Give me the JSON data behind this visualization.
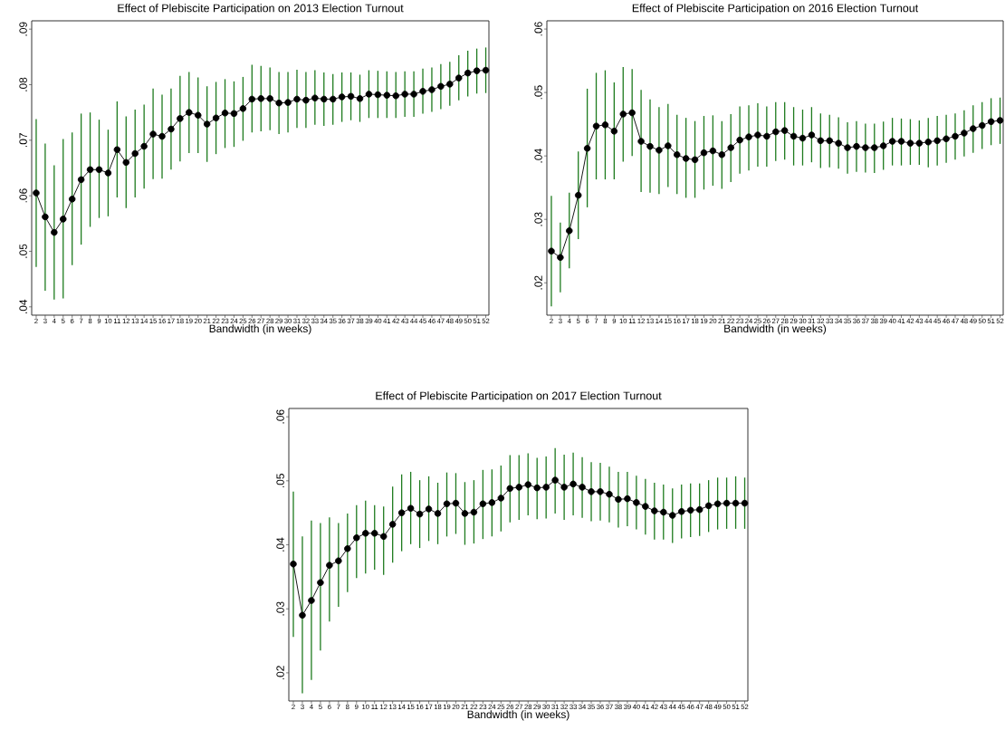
{
  "chart_data": [
    {
      "type": "line",
      "title": "Effect of Plebiscite Participation on 2013 Election Turnout",
      "xlabel": "Bandwidth (in weeks)",
      "marker": "circle",
      "x": [
        2,
        3,
        4,
        5,
        6,
        7,
        8,
        9,
        10,
        11,
        12,
        13,
        14,
        15,
        16,
        17,
        18,
        19,
        20,
        21,
        22,
        23,
        24,
        25,
        26,
        27,
        28,
        29,
        30,
        31,
        32,
        33,
        34,
        35,
        36,
        37,
        38,
        39,
        40,
        41,
        42,
        43,
        44,
        45,
        46,
        47,
        48,
        49,
        50,
        51,
        52
      ],
      "xlim": [
        1.5,
        52.35
      ],
      "ylim": [
        0.0385,
        0.0915
      ],
      "xticks": [
        2,
        3,
        4,
        5,
        6,
        7,
        8,
        9,
        10,
        11,
        12,
        13,
        14,
        15,
        16,
        17,
        18,
        19,
        20,
        21,
        22,
        23,
        24,
        25,
        26,
        27,
        28,
        29,
        30,
        31,
        32,
        33,
        34,
        35,
        36,
        37,
        38,
        39,
        40,
        41,
        42,
        43,
        44,
        45,
        46,
        47,
        48,
        49,
        50,
        51,
        52
      ],
      "yticks": [
        {
          "value": 0.04,
          "label": ".04"
        },
        {
          "value": 0.05,
          "label": ".05"
        },
        {
          "value": 0.06,
          "label": ".06"
        },
        {
          "value": 0.07,
          "label": ".07"
        },
        {
          "value": 0.08,
          "label": ".08"
        },
        {
          "value": 0.09,
          "label": ".09"
        }
      ],
      "series": [
        {
          "color": "#000000",
          "values": [
            0.0605,
            0.0562,
            0.0534,
            0.0558,
            0.0594,
            0.0629,
            0.0647,
            0.0647,
            0.0641,
            0.0683,
            0.066,
            0.0676,
            0.0689,
            0.0711,
            0.0707,
            0.072,
            0.0739,
            0.075,
            0.0745,
            0.0729,
            0.074,
            0.0749,
            0.0748,
            0.0757,
            0.0774,
            0.0775,
            0.0775,
            0.0767,
            0.0768,
            0.0774,
            0.0772,
            0.0776,
            0.0774,
            0.0774,
            0.0778,
            0.0779,
            0.0775,
            0.0783,
            0.0782,
            0.0781,
            0.078,
            0.0783,
            0.0783,
            0.0788,
            0.0791,
            0.0797,
            0.0801,
            0.0812,
            0.0821,
            0.0825,
            0.0826
          ],
          "errors": [
            [
              0.0472,
              0.0738
            ],
            [
              0.0429,
              0.0694
            ],
            [
              0.0413,
              0.0655
            ],
            [
              0.0415,
              0.0702
            ],
            [
              0.0475,
              0.0714
            ],
            [
              0.0512,
              0.0748
            ],
            [
              0.0544,
              0.075
            ],
            [
              0.056,
              0.0737
            ],
            [
              0.0563,
              0.0719
            ],
            [
              0.0597,
              0.077
            ],
            [
              0.0578,
              0.0743
            ],
            [
              0.0597,
              0.0755
            ],
            [
              0.0613,
              0.0764
            ],
            [
              0.063,
              0.0793
            ],
            [
              0.0631,
              0.0782
            ],
            [
              0.0647,
              0.0793
            ],
            [
              0.0662,
              0.0816
            ],
            [
              0.0677,
              0.0823
            ],
            [
              0.0677,
              0.0813
            ],
            [
              0.0661,
              0.0797
            ],
            [
              0.0675,
              0.0805
            ],
            [
              0.0686,
              0.081
            ],
            [
              0.0688,
              0.0806
            ],
            [
              0.0699,
              0.0814
            ],
            [
              0.0714,
              0.0836
            ],
            [
              0.0716,
              0.0834
            ],
            [
              0.0718,
              0.0831
            ],
            [
              0.0711,
              0.0823
            ],
            [
              0.0714,
              0.0823
            ],
            [
              0.0722,
              0.0827
            ],
            [
              0.0722,
              0.0823
            ],
            [
              0.0728,
              0.0826
            ],
            [
              0.0726,
              0.0822
            ],
            [
              0.0728,
              0.0819
            ],
            [
              0.0733,
              0.0822
            ],
            [
              0.0736,
              0.0822
            ],
            [
              0.0733,
              0.0818
            ],
            [
              0.074,
              0.0826
            ],
            [
              0.074,
              0.0825
            ],
            [
              0.074,
              0.0824
            ],
            [
              0.074,
              0.0823
            ],
            [
              0.0742,
              0.0824
            ],
            [
              0.0742,
              0.0824
            ],
            [
              0.0748,
              0.0829
            ],
            [
              0.0751,
              0.0831
            ],
            [
              0.0756,
              0.0837
            ],
            [
              0.0762,
              0.0841
            ],
            [
              0.0772,
              0.0853
            ],
            [
              0.0779,
              0.0861
            ],
            [
              0.0784,
              0.0865
            ],
            [
              0.0785,
              0.0867
            ]
          ]
        }
      ]
    },
    {
      "type": "line",
      "title": "Effect of Plebiscite Participation on 2016 Election Turnout",
      "xlabel": "Bandwidth (in weeks)",
      "marker": "circle",
      "x": [
        2,
        3,
        4,
        5,
        6,
        7,
        8,
        9,
        10,
        11,
        12,
        13,
        14,
        15,
        16,
        17,
        18,
        19,
        20,
        21,
        22,
        23,
        24,
        25,
        26,
        27,
        28,
        29,
        30,
        31,
        32,
        33,
        34,
        35,
        36,
        37,
        38,
        39,
        40,
        41,
        42,
        43,
        44,
        45,
        46,
        47,
        48,
        49,
        50,
        51,
        52
      ],
      "xlim": [
        1.5,
        52.35
      ],
      "ylim": [
        0.0149,
        0.0613
      ],
      "xticks": [
        2,
        3,
        4,
        5,
        6,
        7,
        8,
        9,
        10,
        11,
        12,
        13,
        14,
        15,
        16,
        17,
        18,
        19,
        20,
        21,
        22,
        23,
        24,
        25,
        26,
        27,
        28,
        29,
        30,
        31,
        32,
        33,
        34,
        35,
        36,
        37,
        38,
        39,
        40,
        41,
        42,
        43,
        44,
        45,
        46,
        47,
        48,
        49,
        50,
        51,
        52
      ],
      "yticks": [
        {
          "value": 0.02,
          "label": ".02"
        },
        {
          "value": 0.03,
          "label": ".03"
        },
        {
          "value": 0.04,
          "label": ".04"
        },
        {
          "value": 0.05,
          "label": ".05"
        },
        {
          "value": 0.06,
          "label": ".06"
        }
      ],
      "series": [
        {
          "color": "#000000",
          "values": [
            0.025,
            0.024,
            0.0282,
            0.0338,
            0.0412,
            0.0447,
            0.0449,
            0.0439,
            0.0466,
            0.0468,
            0.0423,
            0.0415,
            0.0409,
            0.0416,
            0.0402,
            0.0396,
            0.0394,
            0.0405,
            0.0408,
            0.0402,
            0.0413,
            0.0425,
            0.043,
            0.0433,
            0.0431,
            0.0438,
            0.044,
            0.0431,
            0.0428,
            0.0433,
            0.0424,
            0.0424,
            0.042,
            0.0413,
            0.0415,
            0.0413,
            0.0413,
            0.0416,
            0.0423,
            0.0423,
            0.042,
            0.042,
            0.0422,
            0.0424,
            0.0427,
            0.0431,
            0.0436,
            0.0443,
            0.0448,
            0.0454,
            0.0456
          ],
          "errors": [
            [
              0.0163,
              0.0337
            ],
            [
              0.0185,
              0.0295
            ],
            [
              0.0223,
              0.0342
            ],
            [
              0.0269,
              0.0407
            ],
            [
              0.0319,
              0.0506
            ],
            [
              0.0363,
              0.0531
            ],
            [
              0.0363,
              0.0535
            ],
            [
              0.0363,
              0.0516
            ],
            [
              0.0391,
              0.054
            ],
            [
              0.04,
              0.0537
            ],
            [
              0.0343,
              0.0504
            ],
            [
              0.0342,
              0.0489
            ],
            [
              0.034,
              0.0477
            ],
            [
              0.0351,
              0.0482
            ],
            [
              0.034,
              0.0465
            ],
            [
              0.0334,
              0.046
            ],
            [
              0.0334,
              0.0455
            ],
            [
              0.0347,
              0.0463
            ],
            [
              0.0353,
              0.0464
            ],
            [
              0.0348,
              0.0455
            ],
            [
              0.0359,
              0.0466
            ],
            [
              0.0372,
              0.0478
            ],
            [
              0.0377,
              0.048
            ],
            [
              0.0383,
              0.0483
            ],
            [
              0.0383,
              0.0478
            ],
            [
              0.0392,
              0.0485
            ],
            [
              0.0394,
              0.0485
            ],
            [
              0.0385,
              0.0477
            ],
            [
              0.0385,
              0.0473
            ],
            [
              0.039,
              0.0477
            ],
            [
              0.0381,
              0.0467
            ],
            [
              0.0382,
              0.0465
            ],
            [
              0.038,
              0.0461
            ],
            [
              0.0372,
              0.0453
            ],
            [
              0.0375,
              0.0455
            ],
            [
              0.0374,
              0.0451
            ],
            [
              0.0373,
              0.0451
            ],
            [
              0.0378,
              0.0454
            ],
            [
              0.0385,
              0.046
            ],
            [
              0.0385,
              0.0459
            ],
            [
              0.0386,
              0.0458
            ],
            [
              0.0386,
              0.0456
            ],
            [
              0.0382,
              0.046
            ],
            [
              0.0385,
              0.0463
            ],
            [
              0.0389,
              0.0465
            ],
            [
              0.0394,
              0.0467
            ],
            [
              0.0399,
              0.0472
            ],
            [
              0.0405,
              0.048
            ],
            [
              0.0411,
              0.0485
            ],
            [
              0.0417,
              0.0491
            ],
            [
              0.0419,
              0.0492
            ]
          ]
        }
      ]
    },
    {
      "type": "line",
      "title": "Effect of Plebiscite Participation on 2017 Election Turnout",
      "xlabel": "Bandwidth (in weeks)",
      "marker": "circle",
      "x": [
        2,
        3,
        4,
        5,
        6,
        7,
        8,
        9,
        10,
        11,
        12,
        13,
        14,
        15,
        16,
        17,
        18,
        19,
        20,
        21,
        22,
        23,
        24,
        25,
        26,
        27,
        28,
        29,
        30,
        31,
        32,
        33,
        34,
        35,
        36,
        37,
        38,
        39,
        40,
        41,
        42,
        43,
        44,
        45,
        46,
        47,
        48,
        49,
        50,
        51,
        52
      ],
      "xlim": [
        1.5,
        52.35
      ],
      "ylim": [
        0.0156,
        0.0613
      ],
      "xticks": [
        2,
        3,
        4,
        5,
        6,
        7,
        8,
        9,
        10,
        11,
        12,
        13,
        14,
        15,
        16,
        17,
        18,
        19,
        20,
        21,
        22,
        23,
        24,
        25,
        26,
        27,
        28,
        29,
        30,
        31,
        32,
        33,
        34,
        35,
        36,
        37,
        38,
        39,
        40,
        41,
        42,
        43,
        44,
        45,
        46,
        47,
        48,
        49,
        50,
        51,
        52
      ],
      "yticks": [
        {
          "value": 0.02,
          "label": ".02"
        },
        {
          "value": 0.03,
          "label": ".03"
        },
        {
          "value": 0.04,
          "label": ".04"
        },
        {
          "value": 0.05,
          "label": ".05"
        },
        {
          "value": 0.06,
          "label": ".06"
        }
      ],
      "series": [
        {
          "color": "#000000",
          "values": [
            0.037,
            0.029,
            0.0313,
            0.0341,
            0.0368,
            0.0375,
            0.0394,
            0.0411,
            0.0418,
            0.0418,
            0.0413,
            0.0432,
            0.045,
            0.0457,
            0.0448,
            0.0456,
            0.0449,
            0.0464,
            0.0465,
            0.0449,
            0.0451,
            0.0464,
            0.0466,
            0.0473,
            0.0488,
            0.049,
            0.0494,
            0.0489,
            0.049,
            0.0501,
            0.049,
            0.0495,
            0.049,
            0.0483,
            0.0483,
            0.0479,
            0.0471,
            0.0472,
            0.0466,
            0.046,
            0.0453,
            0.0451,
            0.0446,
            0.0452,
            0.0454,
            0.0455,
            0.0461,
            0.0464,
            0.0465,
            0.0465,
            0.0465
          ],
          "errors": [
            [
              0.0256,
              0.0483
            ],
            [
              0.0168,
              0.0413
            ],
            [
              0.0189,
              0.0438
            ],
            [
              0.0235,
              0.0434
            ],
            [
              0.028,
              0.0443
            ],
            [
              0.0303,
              0.0434
            ],
            [
              0.0326,
              0.0449
            ],
            [
              0.0348,
              0.0462
            ],
            [
              0.0355,
              0.0469
            ],
            [
              0.0361,
              0.0462
            ],
            [
              0.0353,
              0.046
            ],
            [
              0.0372,
              0.0491
            ],
            [
              0.039,
              0.051
            ],
            [
              0.0401,
              0.0514
            ],
            [
              0.0395,
              0.0501
            ],
            [
              0.0406,
              0.0507
            ],
            [
              0.0401,
              0.0497
            ],
            [
              0.0413,
              0.0513
            ],
            [
              0.0417,
              0.0512
            ],
            [
              0.04,
              0.0498
            ],
            [
              0.0402,
              0.0501
            ],
            [
              0.0409,
              0.0517
            ],
            [
              0.0413,
              0.0518
            ],
            [
              0.0421,
              0.0524
            ],
            [
              0.0435,
              0.054
            ],
            [
              0.0439,
              0.054
            ],
            [
              0.0446,
              0.0543
            ],
            [
              0.044,
              0.0536
            ],
            [
              0.0441,
              0.0538
            ],
            [
              0.0449,
              0.0551
            ],
            [
              0.0439,
              0.0541
            ],
            [
              0.0446,
              0.0544
            ],
            [
              0.0442,
              0.0537
            ],
            [
              0.0437,
              0.0529
            ],
            [
              0.0438,
              0.0528
            ],
            [
              0.0435,
              0.0522
            ],
            [
              0.0427,
              0.0514
            ],
            [
              0.0429,
              0.0514
            ],
            [
              0.0424,
              0.0508
            ],
            [
              0.0416,
              0.0503
            ],
            [
              0.0408,
              0.0497
            ],
            [
              0.0408,
              0.0494
            ],
            [
              0.0403,
              0.0488
            ],
            [
              0.041,
              0.0494
            ],
            [
              0.0412,
              0.0496
            ],
            [
              0.0414,
              0.0496
            ],
            [
              0.042,
              0.0501
            ],
            [
              0.0424,
              0.0505
            ],
            [
              0.0425,
              0.0505
            ],
            [
              0.0425,
              0.0507
            ],
            [
              0.0425,
              0.0505
            ]
          ]
        }
      ]
    }
  ]
}
